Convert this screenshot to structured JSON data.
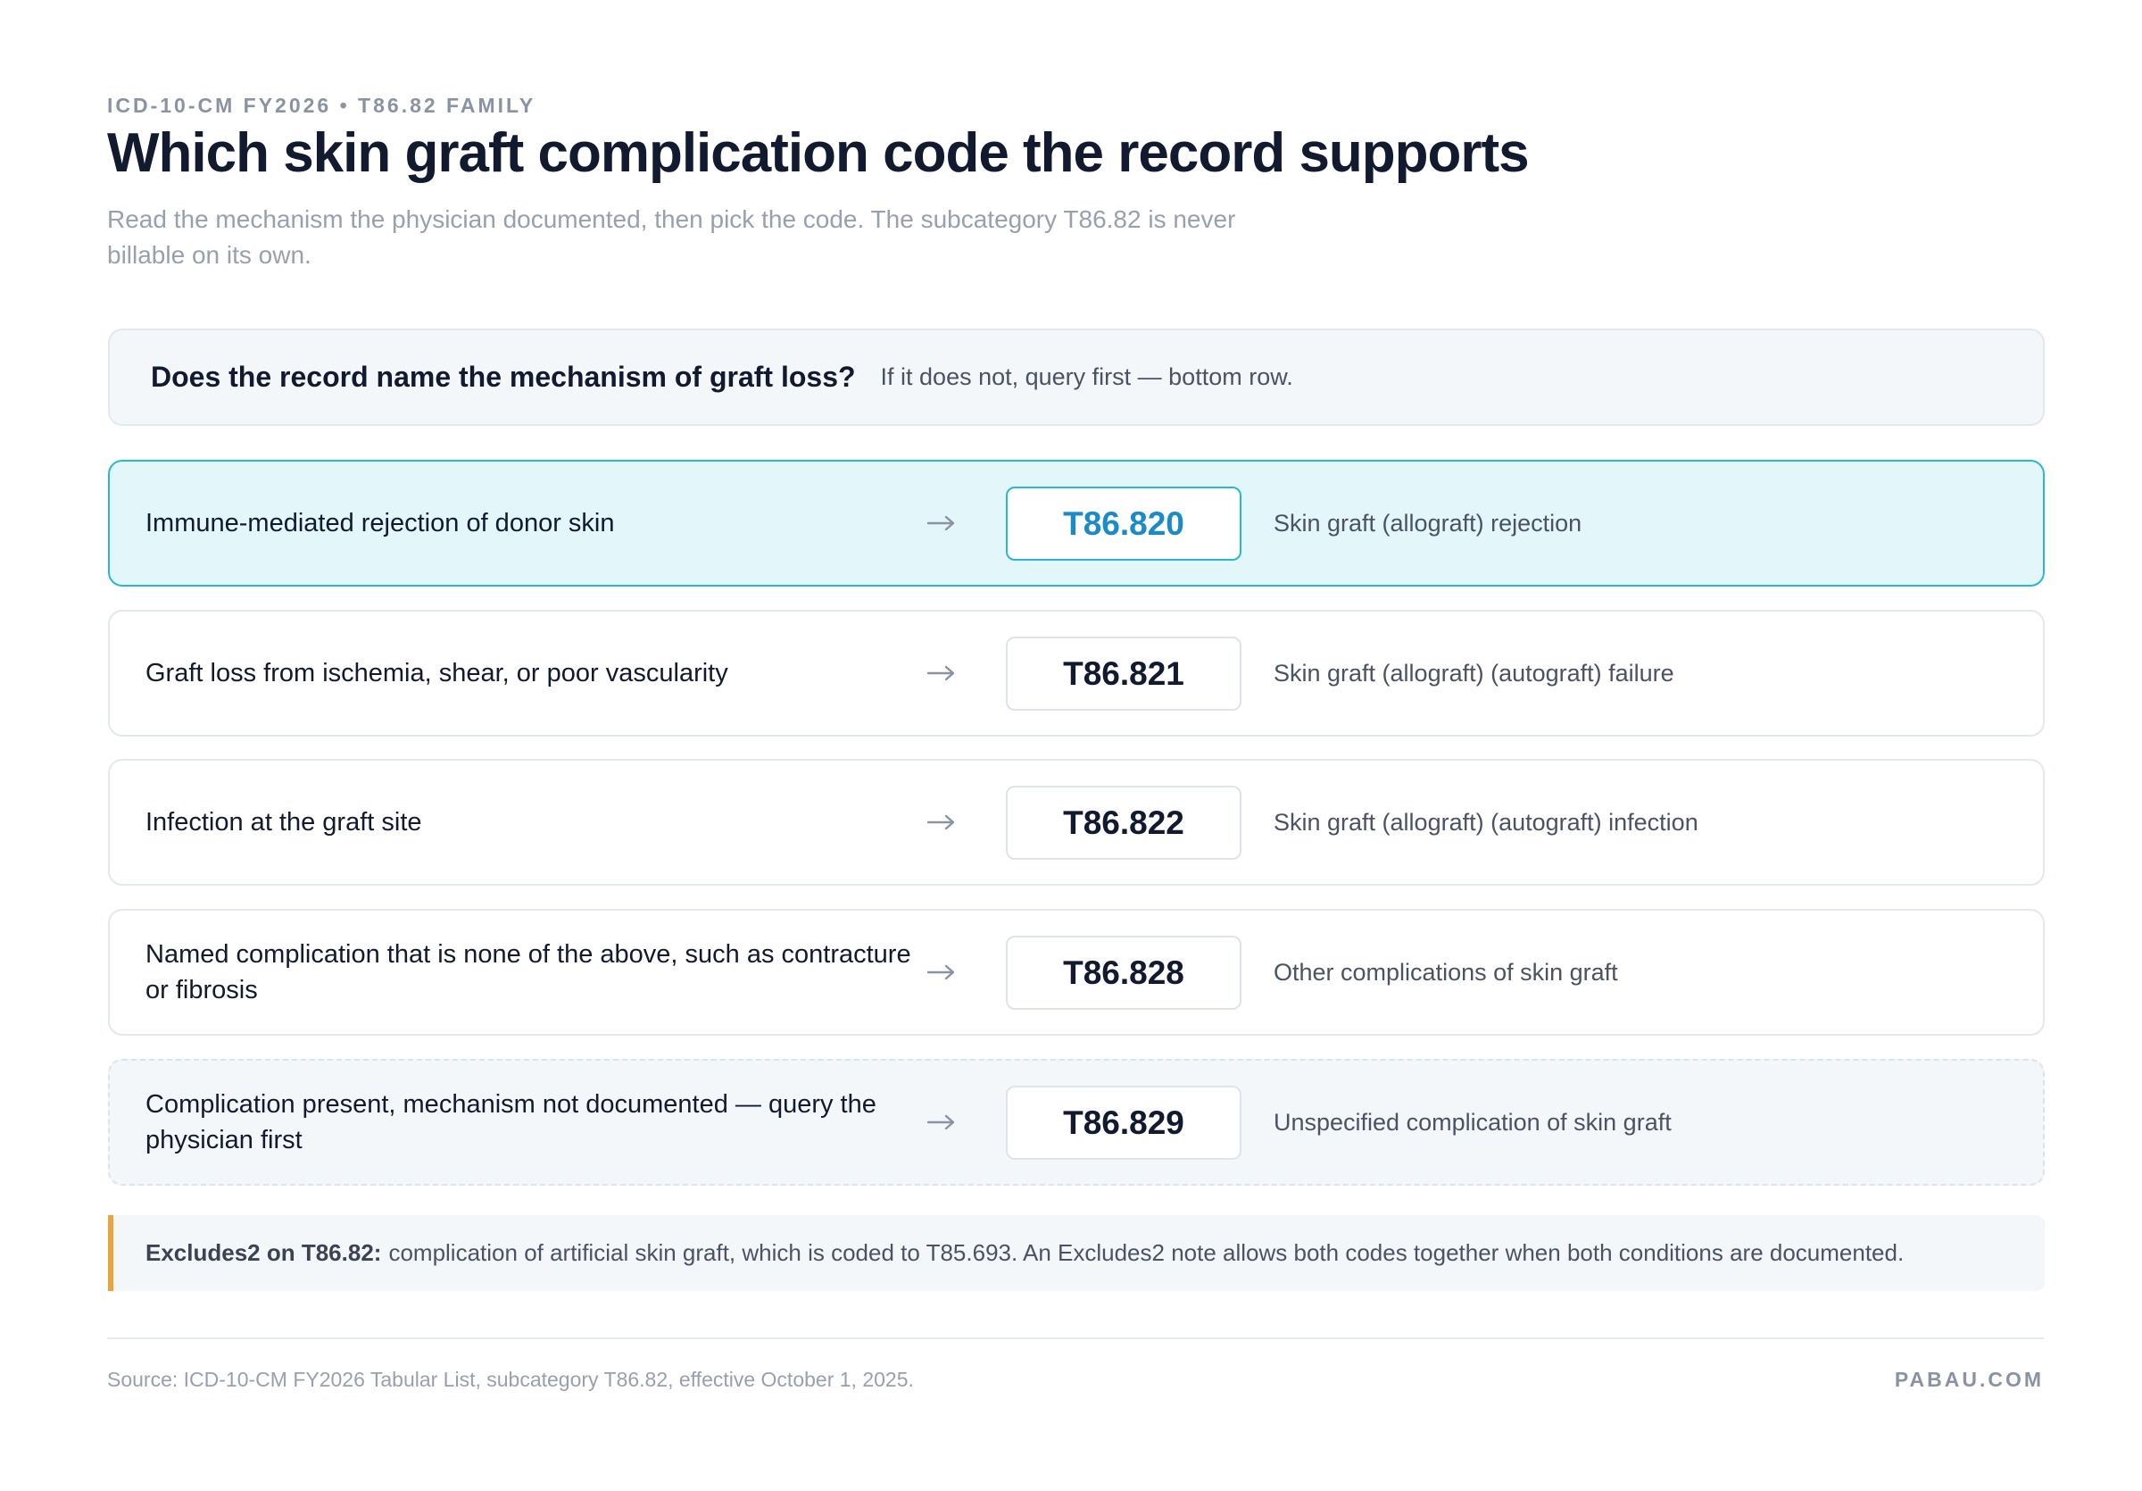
{
  "header": {
    "eyebrow": "ICD-10-CM FY2026 • T86.82 FAMILY",
    "title": "Which skin graft complication code the record supports",
    "subtitle": "Read the mechanism the physician documented, then pick the code. The subcategory T86.82 is never billable on its own."
  },
  "question": {
    "label": "Does the record name the mechanism of graft loss?",
    "hint": "If it does not, query first — bottom row."
  },
  "rows": [
    {
      "condition": "Immune-mediated rejection of donor skin",
      "code": "T86.820",
      "description": "Skin graft (allograft) rejection"
    },
    {
      "condition": "Graft loss from ischemia, shear, or poor vascularity",
      "code": "T86.821",
      "description": "Skin graft (allograft) (autograft) failure"
    },
    {
      "condition": "Infection at the graft site",
      "code": "T86.822",
      "description": "Skin graft (allograft) (autograft) infection"
    },
    {
      "condition": "Named complication that is none of the above, such as contracture or fibrosis",
      "code": "T86.828",
      "description": "Other complications of skin graft"
    },
    {
      "condition": "Complication present, mechanism not documented — query the physician first",
      "code": "T86.829",
      "description": "Unspecified complication of skin graft"
    }
  ],
  "note": {
    "label": "Excludes2 on T86.82:",
    "text": "complication of artificial skin graft, which is coded to T85.693. An Excludes2 note allows both codes together when both conditions are documented."
  },
  "footer": {
    "source": "Source: ICD-10-CM FY2026 Tabular List, subcategory T86.82, effective October 1, 2025.",
    "brand": "PABAU.COM"
  }
}
